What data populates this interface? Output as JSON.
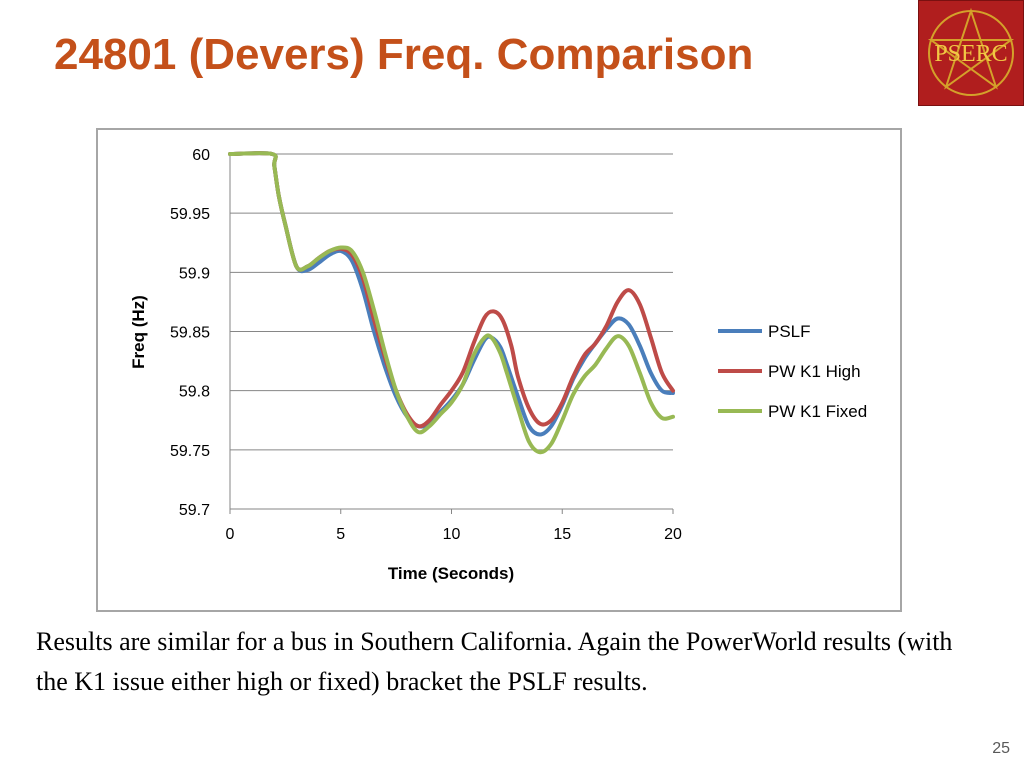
{
  "slide": {
    "title": "24801 (Devers) Freq. Comparison",
    "body": "Results are similar for a bus in Southern California.  Again the PowerWorld results (with the K1 issue either high or fixed) bracket the PSLF results.",
    "page_number": "25",
    "logo_text": "PSERC",
    "logo_colors": {
      "background": "#b01e1e",
      "text": "#f2c744",
      "star": "#d4a12a"
    }
  },
  "chart_data": {
    "type": "line",
    "title": "",
    "xlabel": "Time (Seconds)",
    "ylabel": "Freq (Hz)",
    "xlim": [
      0,
      20
    ],
    "ylim": [
      59.7,
      60
    ],
    "xticks": [
      0,
      5,
      10,
      15,
      20
    ],
    "yticks": [
      59.7,
      59.75,
      59.8,
      59.85,
      59.9,
      59.95,
      60
    ],
    "grid": "horizontal",
    "legend_position": "right",
    "series": [
      {
        "name": "PSLF",
        "color": "#4a7ebb",
        "points": [
          [
            0,
            60
          ],
          [
            1.9,
            60
          ],
          [
            2.0,
            59.99
          ],
          [
            2.2,
            59.965
          ],
          [
            2.5,
            59.94
          ],
          [
            3.0,
            59.905
          ],
          [
            3.5,
            59.902
          ],
          [
            4.0,
            59.908
          ],
          [
            4.5,
            59.915
          ],
          [
            5.0,
            59.918
          ],
          [
            5.5,
            59.91
          ],
          [
            6.0,
            59.885
          ],
          [
            6.5,
            59.85
          ],
          [
            7.0,
            59.82
          ],
          [
            7.5,
            59.795
          ],
          [
            8.0,
            59.778
          ],
          [
            8.5,
            59.77
          ],
          [
            9.0,
            59.772
          ],
          [
            9.5,
            59.782
          ],
          [
            10.0,
            59.792
          ],
          [
            10.5,
            59.805
          ],
          [
            11.0,
            59.825
          ],
          [
            11.5,
            59.843
          ],
          [
            11.8,
            59.845
          ],
          [
            12.2,
            59.837
          ],
          [
            12.5,
            59.822
          ],
          [
            13.0,
            59.795
          ],
          [
            13.5,
            59.77
          ],
          [
            14.0,
            59.763
          ],
          [
            14.5,
            59.77
          ],
          [
            15.0,
            59.788
          ],
          [
            15.5,
            59.81
          ],
          [
            16.0,
            59.827
          ],
          [
            16.5,
            59.84
          ],
          [
            17.0,
            59.852
          ],
          [
            17.5,
            59.861
          ],
          [
            18.0,
            59.856
          ],
          [
            18.5,
            59.838
          ],
          [
            19.0,
            59.815
          ],
          [
            19.5,
            59.8
          ],
          [
            20.0,
            59.798
          ]
        ]
      },
      {
        "name": "PW K1 High",
        "color": "#be4b48",
        "points": [
          [
            0,
            60
          ],
          [
            1.9,
            60
          ],
          [
            2.0,
            59.99
          ],
          [
            2.2,
            59.965
          ],
          [
            2.5,
            59.94
          ],
          [
            3.0,
            59.905
          ],
          [
            3.5,
            59.905
          ],
          [
            4.0,
            59.912
          ],
          [
            4.5,
            59.918
          ],
          [
            5.0,
            59.92
          ],
          [
            5.5,
            59.915
          ],
          [
            6.0,
            59.895
          ],
          [
            6.5,
            59.86
          ],
          [
            7.0,
            59.828
          ],
          [
            7.5,
            59.8
          ],
          [
            8.0,
            59.78
          ],
          [
            8.5,
            59.77
          ],
          [
            9.0,
            59.775
          ],
          [
            9.5,
            59.788
          ],
          [
            10.0,
            59.8
          ],
          [
            10.5,
            59.815
          ],
          [
            11.0,
            59.84
          ],
          [
            11.5,
            59.862
          ],
          [
            11.9,
            59.867
          ],
          [
            12.3,
            59.86
          ],
          [
            12.7,
            59.838
          ],
          [
            13.0,
            59.812
          ],
          [
            13.5,
            59.785
          ],
          [
            14.0,
            59.772
          ],
          [
            14.5,
            59.775
          ],
          [
            15.0,
            59.79
          ],
          [
            15.5,
            59.812
          ],
          [
            16.0,
            59.83
          ],
          [
            16.5,
            59.84
          ],
          [
            17.0,
            59.855
          ],
          [
            17.5,
            59.875
          ],
          [
            18.0,
            59.885
          ],
          [
            18.5,
            59.873
          ],
          [
            19.0,
            59.845
          ],
          [
            19.5,
            59.815
          ],
          [
            20.0,
            59.8
          ]
        ]
      },
      {
        "name": "PW K1 Fixed",
        "color": "#98b954",
        "points": [
          [
            0,
            60
          ],
          [
            1.9,
            60
          ],
          [
            2.0,
            59.99
          ],
          [
            2.2,
            59.965
          ],
          [
            2.5,
            59.94
          ],
          [
            3.0,
            59.905
          ],
          [
            3.5,
            59.905
          ],
          [
            4.0,
            59.912
          ],
          [
            4.5,
            59.918
          ],
          [
            5.0,
            59.921
          ],
          [
            5.5,
            59.918
          ],
          [
            6.0,
            59.9
          ],
          [
            6.5,
            59.868
          ],
          [
            7.0,
            59.832
          ],
          [
            7.5,
            59.8
          ],
          [
            8.0,
            59.778
          ],
          [
            8.5,
            59.765
          ],
          [
            9.0,
            59.77
          ],
          [
            9.5,
            59.78
          ],
          [
            10.0,
            59.79
          ],
          [
            10.5,
            59.805
          ],
          [
            11.0,
            59.83
          ],
          [
            11.5,
            59.845
          ],
          [
            11.8,
            59.845
          ],
          [
            12.2,
            59.832
          ],
          [
            12.5,
            59.815
          ],
          [
            13.0,
            59.785
          ],
          [
            13.5,
            59.757
          ],
          [
            14.0,
            59.748
          ],
          [
            14.5,
            59.755
          ],
          [
            15.0,
            59.775
          ],
          [
            15.5,
            59.797
          ],
          [
            16.0,
            59.812
          ],
          [
            16.5,
            59.822
          ],
          [
            17.0,
            59.836
          ],
          [
            17.5,
            59.846
          ],
          [
            18.0,
            59.838
          ],
          [
            18.5,
            59.815
          ],
          [
            19.0,
            59.79
          ],
          [
            19.5,
            59.777
          ],
          [
            20.0,
            59.778
          ]
        ]
      }
    ]
  }
}
